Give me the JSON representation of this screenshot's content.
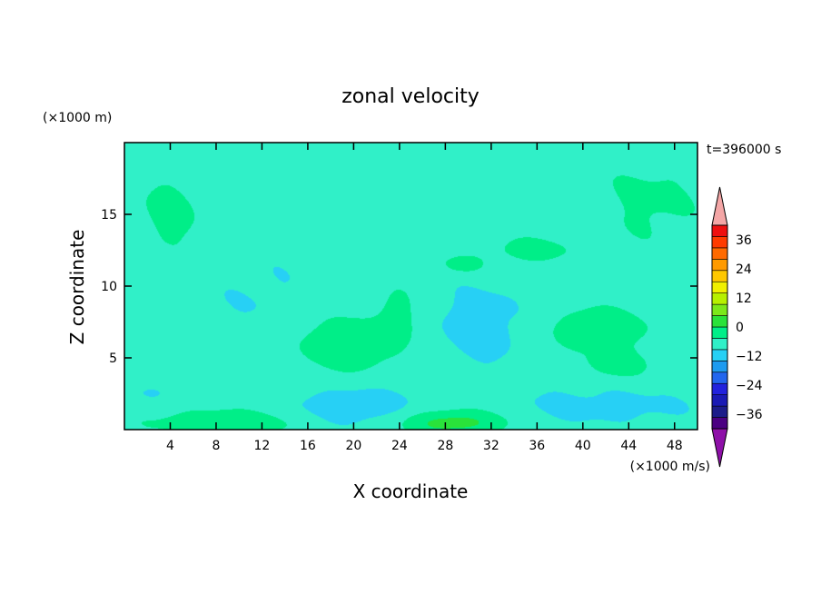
{
  "chart_data": {
    "type": "heatmap",
    "title": "zonal velocity",
    "xlabel": "X coordinate",
    "ylabel": "Z coordinate",
    "x_unit": "(×1000 m/s)",
    "y_unit": "(×1000 m)",
    "time_label": "t=396000 s",
    "xlim": [
      0,
      50
    ],
    "ylim": [
      0,
      20
    ],
    "x_ticks": [
      4,
      8,
      12,
      16,
      20,
      24,
      28,
      32,
      36,
      40,
      44,
      48
    ],
    "y_ticks": [
      5,
      10,
      15
    ],
    "colorbar": {
      "range": [
        -42,
        42
      ],
      "step": 6,
      "tick_labels": [
        {
          "value": 36,
          "label": "36"
        },
        {
          "value": 24,
          "label": "24"
        },
        {
          "value": 12,
          "label": "12"
        },
        {
          "value": 0,
          "label": "0"
        },
        {
          "value": -12,
          "label": "−12"
        },
        {
          "value": -24,
          "label": "−24"
        },
        {
          "value": -36,
          "label": "−36"
        }
      ],
      "colors": [
        "#4b0082",
        "#1c1c8a",
        "#1a1ab4",
        "#2222dd",
        "#2266ee",
        "#1e9bf0",
        "#27d0f5",
        "#30f0c8",
        "#00ee88",
        "#2ae23a",
        "#7ce81a",
        "#b7f000",
        "#f0f000",
        "#ffc800",
        "#ff9a00",
        "#ff6a00",
        "#ff3b00",
        "#ee1010"
      ],
      "over_color": "#f4a6a6",
      "under_color": "#8e10a8"
    },
    "background_value": 3,
    "features": [
      {
        "x": 28.7,
        "z": 0.5,
        "rx": 4.6,
        "rz": 0.9,
        "value": 12
      },
      {
        "x": 8.9,
        "z": 0.5,
        "rx": 6.5,
        "rz": 0.9,
        "value": 8
      },
      {
        "x": 19.0,
        "z": 6.0,
        "rx": 4.3,
        "rz": 2.0,
        "value": 9
      },
      {
        "x": 24.0,
        "z": 8.0,
        "rx": 1.4,
        "rz": 2.0,
        "value": 7
      },
      {
        "x": 41.5,
        "z": 7.0,
        "rx": 4.5,
        "rz": 1.6,
        "value": 7
      },
      {
        "x": 43.0,
        "z": 4.5,
        "rx": 2.5,
        "rz": 0.9,
        "value": 7
      },
      {
        "x": 35.5,
        "z": 12.5,
        "rx": 3.5,
        "rz": 0.9,
        "value": 6
      },
      {
        "x": 29.5,
        "z": 11.5,
        "rx": 2.0,
        "rz": 0.7,
        "value": 6
      },
      {
        "x": 31.0,
        "z": 7.2,
        "rx": 4.0,
        "rz": 3.0,
        "value": -6
      },
      {
        "x": 12.5,
        "z": 9.0,
        "rx": 7.0,
        "rz": 4.0,
        "value": -3
      },
      {
        "x": 2.5,
        "z": 2.6,
        "rx": 2.5,
        "rz": 0.7,
        "value": -3
      },
      {
        "x": 20.0,
        "z": 1.6,
        "rx": 5.5,
        "rz": 1.4,
        "value": -7
      },
      {
        "x": 42.0,
        "z": 1.6,
        "rx": 8.5,
        "rz": 1.3,
        "value": -5
      },
      {
        "x": 36.5,
        "z": 3.8,
        "rx": 3.5,
        "rz": 1.3,
        "value": -2
      },
      {
        "x": 4.0,
        "z": 15.0,
        "rx": 3.0,
        "rz": 3.0,
        "value": 5
      },
      {
        "x": 46.0,
        "z": 16.0,
        "rx": 5.0,
        "rz": 3.5,
        "value": 4
      }
    ]
  }
}
